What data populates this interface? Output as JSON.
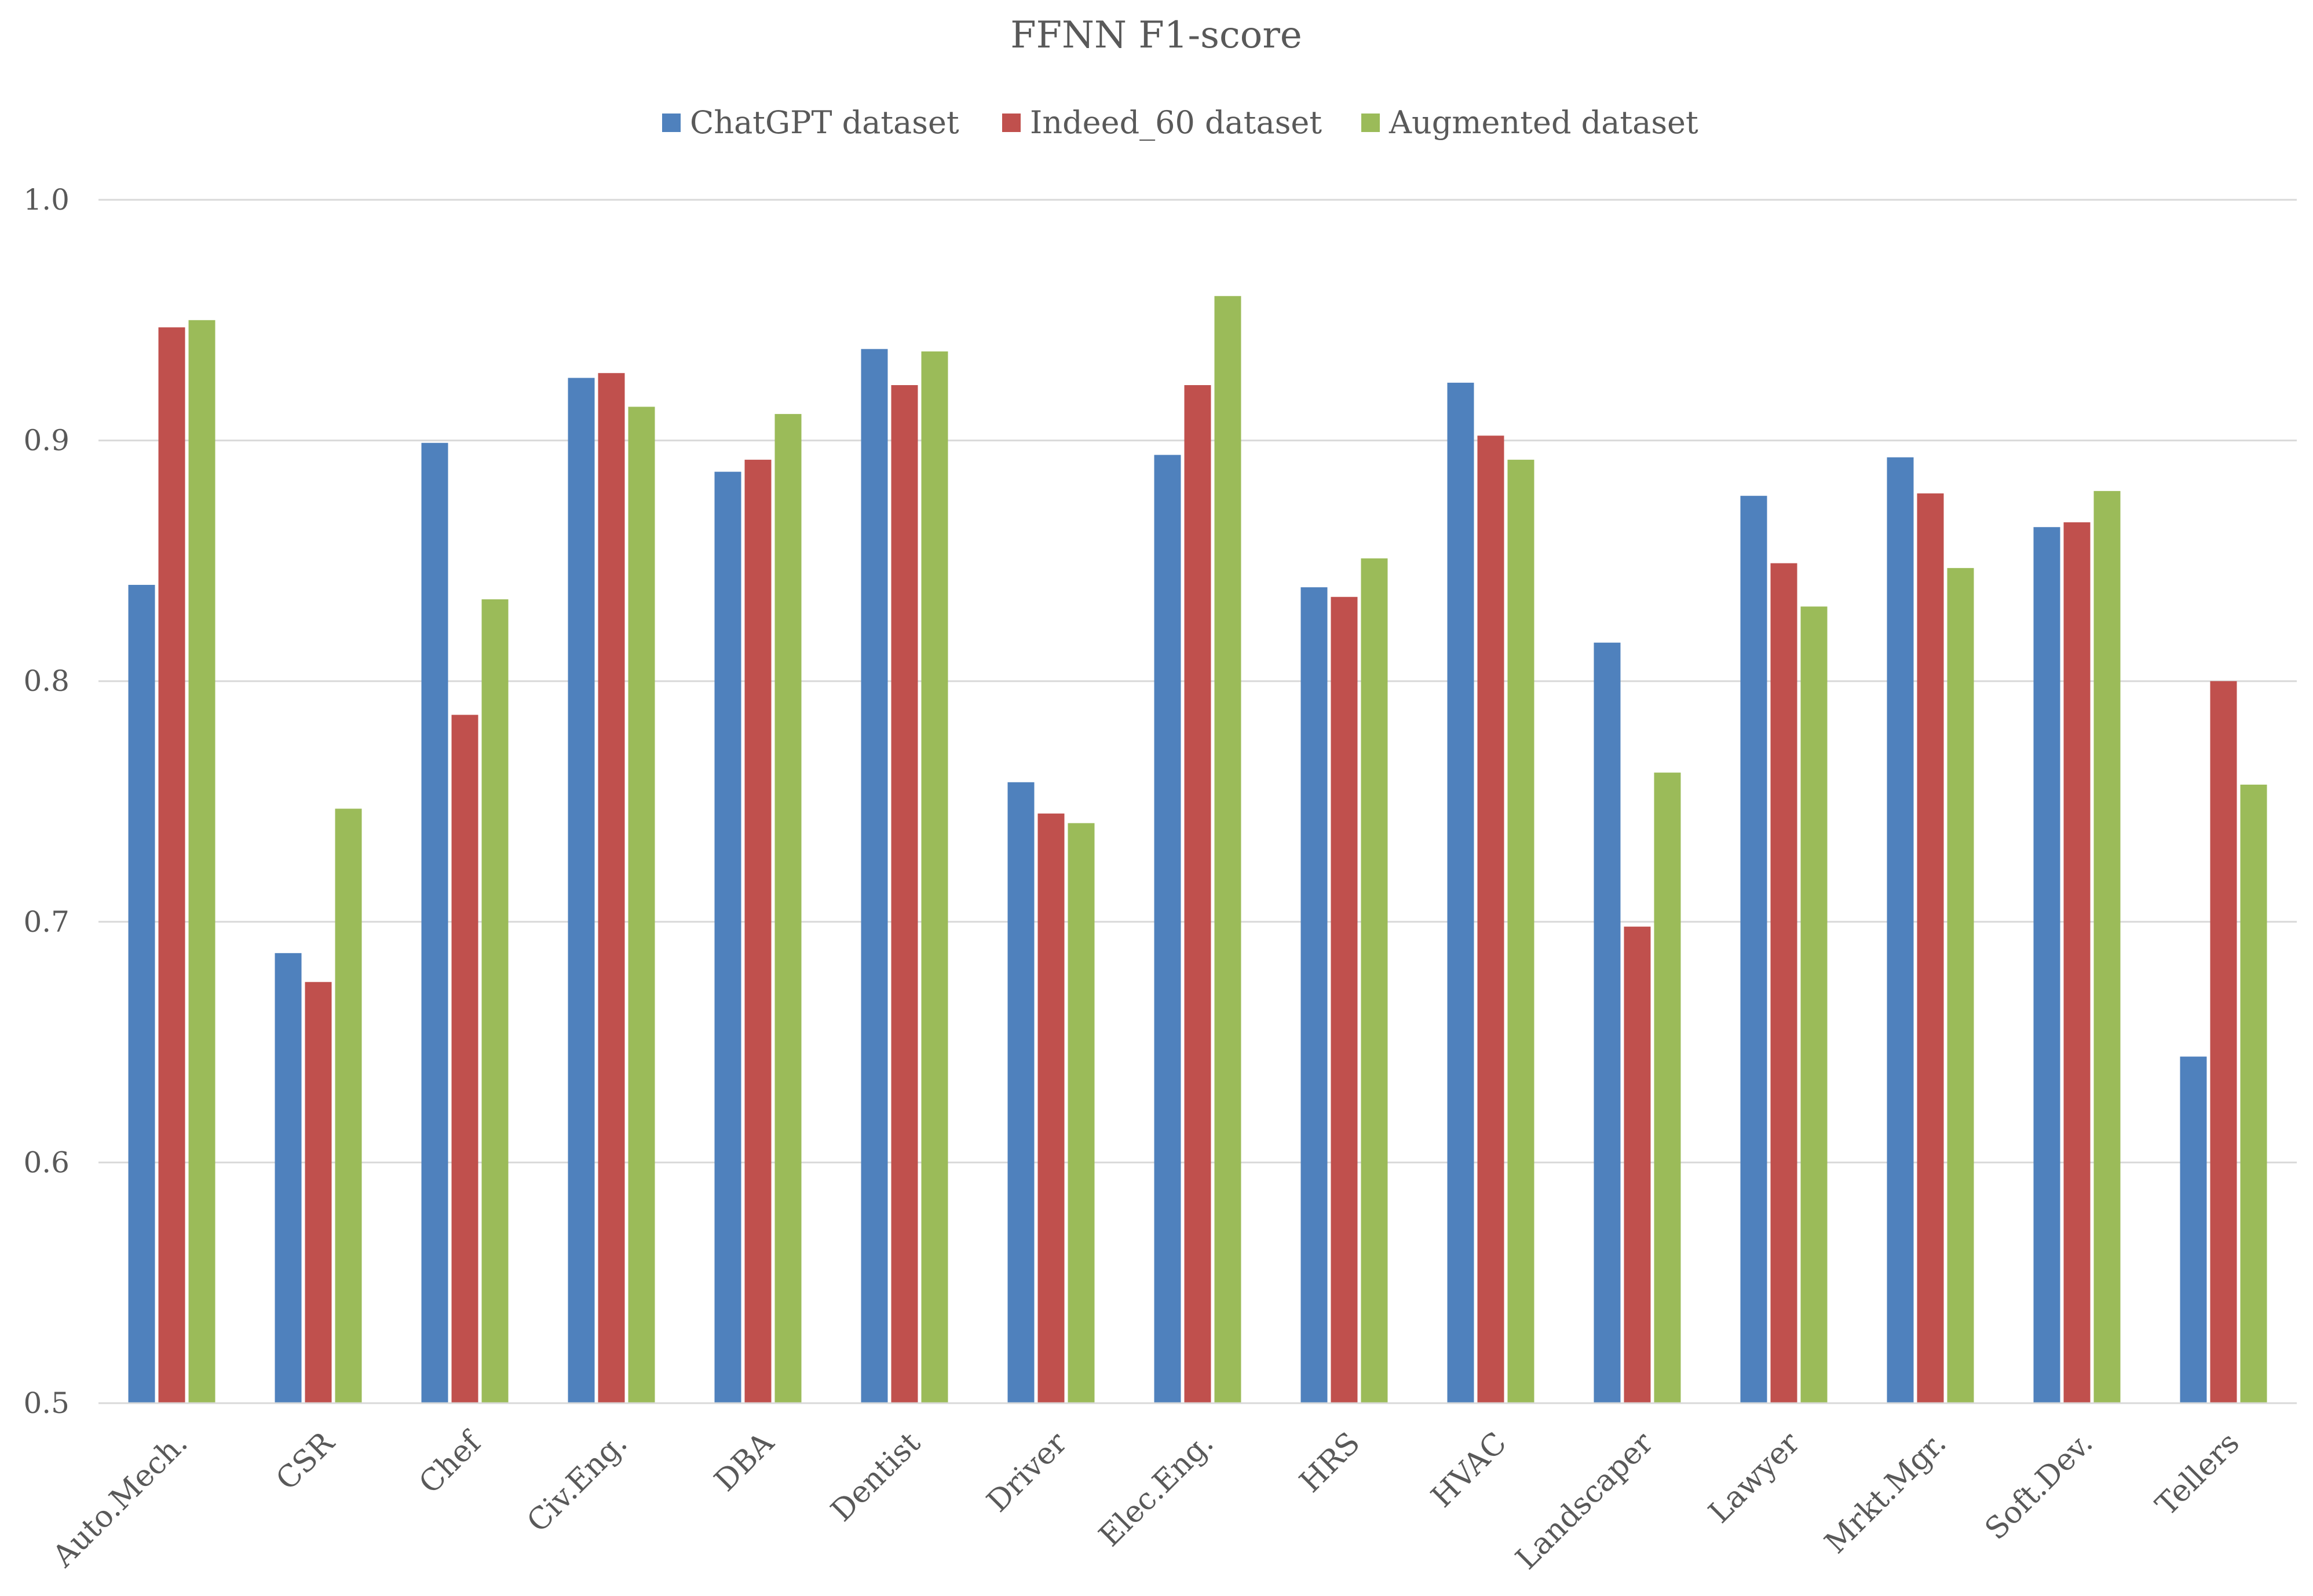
{
  "chart_data": {
    "type": "bar",
    "title": "FFNN F1-score",
    "xlabel": "",
    "ylabel": "",
    "ylim": [
      0.5,
      1.0
    ],
    "yticks": [
      {
        "value": 0.5,
        "label": "0.5"
      },
      {
        "value": 0.6,
        "label": "0.6"
      },
      {
        "value": 0.7,
        "label": "0.7"
      },
      {
        "value": 0.8,
        "label": "0.8"
      },
      {
        "value": 0.9,
        "label": "0.9"
      },
      {
        "value": 1.0,
        "label": "1.0"
      }
    ],
    "grid": true,
    "legend_position": "top-center",
    "categories": [
      "Auto.Mech.",
      "CSR",
      "Chef",
      "Civ.Eng.",
      "DBA",
      "Dentist",
      "Driver",
      "Elec.Eng.",
      "HRS",
      "HVAC",
      "Landscaper",
      "Lawyer",
      "Mrkt.Mgr.",
      "Soft.Dev.",
      "Tellers"
    ],
    "series": [
      {
        "name": "ChatGPT dataset",
        "color": "#4f81bd",
        "values": [
          0.84,
          0.687,
          0.899,
          0.926,
          0.887,
          0.938,
          0.758,
          0.894,
          0.839,
          0.924,
          0.816,
          0.877,
          0.893,
          0.864,
          0.644
        ]
      },
      {
        "name": "Indeed_60 dataset",
        "color": "#c0504d",
        "values": [
          0.947,
          0.675,
          0.786,
          0.928,
          0.892,
          0.923,
          0.745,
          0.923,
          0.835,
          0.902,
          0.698,
          0.849,
          0.878,
          0.866,
          0.8
        ]
      },
      {
        "name": "Augmented dataset",
        "color": "#9bbb59",
        "values": [
          0.95,
          0.747,
          0.834,
          0.914,
          0.911,
          0.937,
          0.741,
          0.96,
          0.851,
          0.892,
          0.762,
          0.831,
          0.847,
          0.879,
          0.757
        ]
      }
    ]
  }
}
